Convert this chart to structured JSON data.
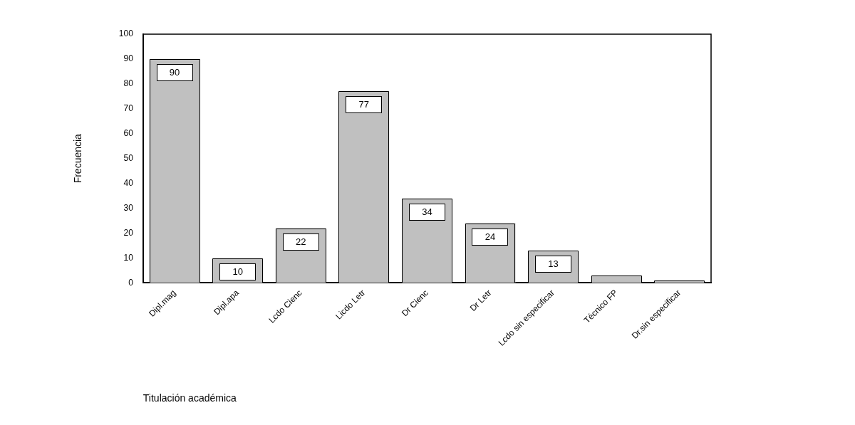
{
  "chart_data": {
    "type": "bar",
    "xlabel": "Titulación académica",
    "ylabel": "Frecuencia",
    "categories": [
      "Dipl.mag",
      "Dipl.apa",
      "Lcdo Cienc",
      "Licdo Letr",
      "Dr Cienc",
      "Dr Letr",
      "Lcdo sin especificar",
      "Técnico FP",
      "Dr.sin especificar"
    ],
    "values": [
      90,
      10,
      22,
      77,
      34,
      24,
      13,
      3,
      1
    ],
    "value_labels": [
      "90",
      "10",
      "22",
      "77",
      "34",
      "24",
      "13",
      null,
      null
    ],
    "color": "#c0c0c0",
    "ylim": [
      0,
      100
    ],
    "yticks": [
      0,
      10,
      20,
      30,
      40,
      50,
      60,
      70,
      80,
      90,
      100
    ],
    "grid": false,
    "legend": false
  }
}
